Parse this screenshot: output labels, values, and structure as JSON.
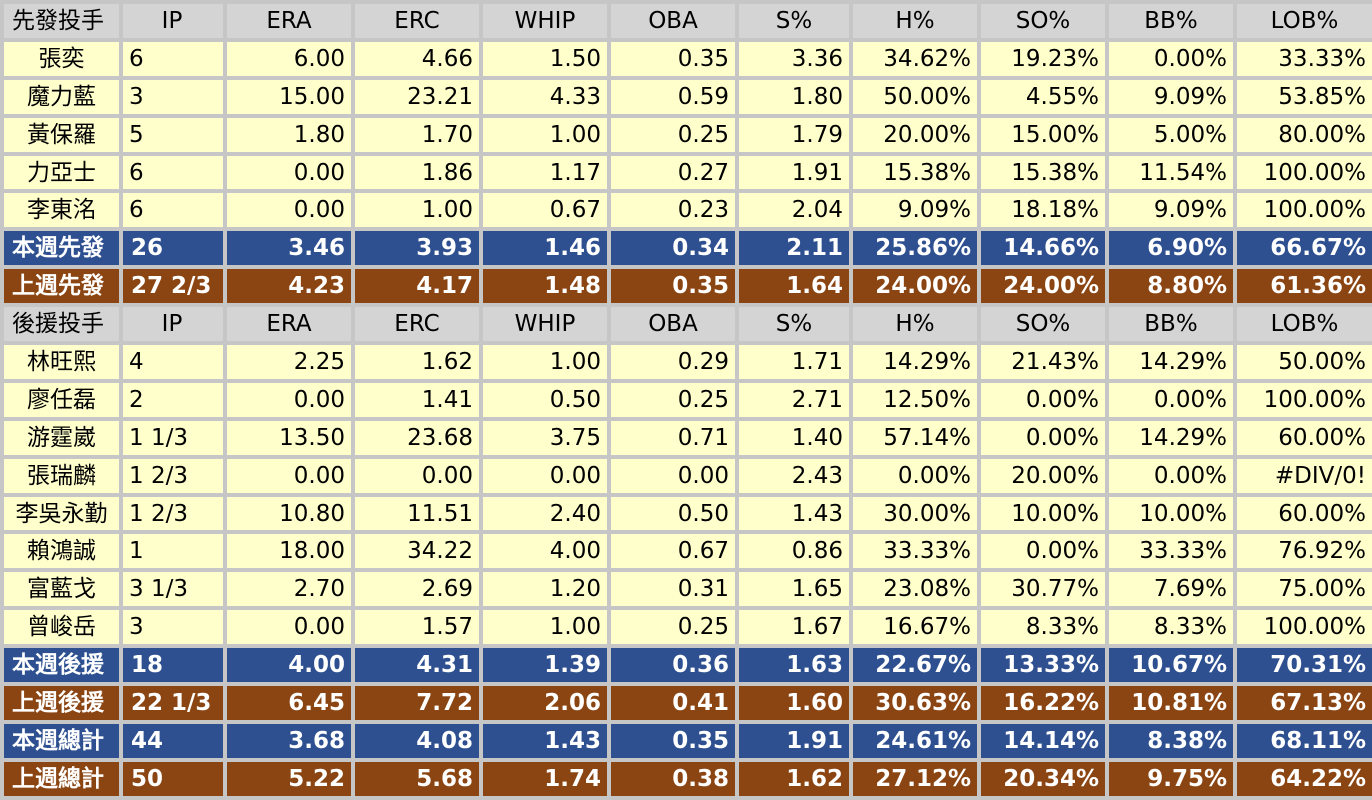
{
  "columns": [
    "IP",
    "ERA",
    "ERC",
    "WHIP",
    "OBA",
    "S%",
    "H%",
    "SO%",
    "BB%",
    "LOB%"
  ],
  "starters": {
    "header": "先發投手",
    "rows": [
      {
        "name": "張奕",
        "ip": "6",
        "era": "6.00",
        "erc": "4.66",
        "whip": "1.50",
        "oba": "0.35",
        "s": "3.36",
        "h": "34.62%",
        "so": "19.23%",
        "bb": "0.00%",
        "lob": "33.33%"
      },
      {
        "name": "魔力藍",
        "ip": "3",
        "era": "15.00",
        "erc": "23.21",
        "whip": "4.33",
        "oba": "0.59",
        "s": "1.80",
        "h": "50.00%",
        "so": "4.55%",
        "bb": "9.09%",
        "lob": "53.85%"
      },
      {
        "name": "黃保羅",
        "ip": "5",
        "era": "1.80",
        "erc": "1.70",
        "whip": "1.00",
        "oba": "0.25",
        "s": "1.79",
        "h": "20.00%",
        "so": "15.00%",
        "bb": "5.00%",
        "lob": "80.00%"
      },
      {
        "name": "力亞士",
        "ip": "6",
        "era": "0.00",
        "erc": "1.86",
        "whip": "1.17",
        "oba": "0.27",
        "s": "1.91",
        "h": "15.38%",
        "so": "15.38%",
        "bb": "11.54%",
        "lob": "100.00%"
      },
      {
        "name": "李東洺",
        "ip": "6",
        "era": "0.00",
        "erc": "1.00",
        "whip": "0.67",
        "oba": "0.23",
        "s": "2.04",
        "h": "9.09%",
        "so": "18.18%",
        "bb": "9.09%",
        "lob": "100.00%"
      }
    ],
    "this_week": {
      "name": "本週先發",
      "ip": "26",
      "era": "3.46",
      "erc": "3.93",
      "whip": "1.46",
      "oba": "0.34",
      "s": "2.11",
      "h": "25.86%",
      "so": "14.66%",
      "bb": "6.90%",
      "lob": "66.67%"
    },
    "last_week": {
      "name": "上週先發",
      "ip": "27 2/3",
      "era": "4.23",
      "erc": "4.17",
      "whip": "1.48",
      "oba": "0.35",
      "s": "1.64",
      "h": "24.00%",
      "so": "24.00%",
      "bb": "8.80%",
      "lob": "61.36%"
    }
  },
  "relievers": {
    "header": "後援投手",
    "rows": [
      {
        "name": "林旺熙",
        "ip": "4",
        "era": "2.25",
        "erc": "1.62",
        "whip": "1.00",
        "oba": "0.29",
        "s": "1.71",
        "h": "14.29%",
        "so": "21.43%",
        "bb": "14.29%",
        "lob": "50.00%"
      },
      {
        "name": "廖任磊",
        "ip": "2",
        "era": "0.00",
        "erc": "1.41",
        "whip": "0.50",
        "oba": "0.25",
        "s": "2.71",
        "h": "12.50%",
        "so": "0.00%",
        "bb": "0.00%",
        "lob": "100.00%"
      },
      {
        "name": "游霆崴",
        "ip": "1 1/3",
        "era": "13.50",
        "erc": "23.68",
        "whip": "3.75",
        "oba": "0.71",
        "s": "1.40",
        "h": "57.14%",
        "so": "0.00%",
        "bb": "14.29%",
        "lob": "60.00%"
      },
      {
        "name": "張瑞麟",
        "ip": "1 2/3",
        "era": "0.00",
        "erc": "0.00",
        "whip": "0.00",
        "oba": "0.00",
        "s": "2.43",
        "h": "0.00%",
        "so": "20.00%",
        "bb": "0.00%",
        "lob": "#DIV/0!"
      },
      {
        "name": "李吳永勤",
        "ip": "1 2/3",
        "era": "10.80",
        "erc": "11.51",
        "whip": "2.40",
        "oba": "0.50",
        "s": "1.43",
        "h": "30.00%",
        "so": "10.00%",
        "bb": "10.00%",
        "lob": "60.00%"
      },
      {
        "name": "賴鴻誠",
        "ip": "1",
        "era": "18.00",
        "erc": "34.22",
        "whip": "4.00",
        "oba": "0.67",
        "s": "0.86",
        "h": "33.33%",
        "so": "0.00%",
        "bb": "33.33%",
        "lob": "76.92%"
      },
      {
        "name": "富藍戈",
        "ip": "3 1/3",
        "era": "2.70",
        "erc": "2.69",
        "whip": "1.20",
        "oba": "0.31",
        "s": "1.65",
        "h": "23.08%",
        "so": "30.77%",
        "bb": "7.69%",
        "lob": "75.00%"
      },
      {
        "name": "曾峻岳",
        "ip": "3",
        "era": "0.00",
        "erc": "1.57",
        "whip": "1.00",
        "oba": "0.25",
        "s": "1.67",
        "h": "16.67%",
        "so": "8.33%",
        "bb": "8.33%",
        "lob": "100.00%"
      }
    ],
    "this_week": {
      "name": "本週後援",
      "ip": "18",
      "era": "4.00",
      "erc": "4.31",
      "whip": "1.39",
      "oba": "0.36",
      "s": "1.63",
      "h": "22.67%",
      "so": "13.33%",
      "bb": "10.67%",
      "lob": "70.31%"
    },
    "last_week": {
      "name": "上週後援",
      "ip": "22 1/3",
      "era": "6.45",
      "erc": "7.72",
      "whip": "2.06",
      "oba": "0.41",
      "s": "1.60",
      "h": "30.63%",
      "so": "16.22%",
      "bb": "10.81%",
      "lob": "67.13%"
    }
  },
  "totals": {
    "this_week": {
      "name": "本週總計",
      "ip": "44",
      "era": "3.68",
      "erc": "4.08",
      "whip": "1.43",
      "oba": "0.35",
      "s": "1.91",
      "h": "24.61%",
      "so": "14.14%",
      "bb": "8.38%",
      "lob": "68.11%"
    },
    "last_week": {
      "name": "上週總計",
      "ip": "50",
      "era": "5.22",
      "erc": "5.68",
      "whip": "1.74",
      "oba": "0.38",
      "s": "1.62",
      "h": "27.12%",
      "so": "20.34%",
      "bb": "9.75%",
      "lob": "64.22%"
    }
  },
  "colors": {
    "row_bg": "#ffffcc",
    "header_bg": "#d4d4d4",
    "this_week_bg": "#2e5090",
    "last_week_bg": "#8b4513",
    "grid": "#c6c6c6"
  }
}
